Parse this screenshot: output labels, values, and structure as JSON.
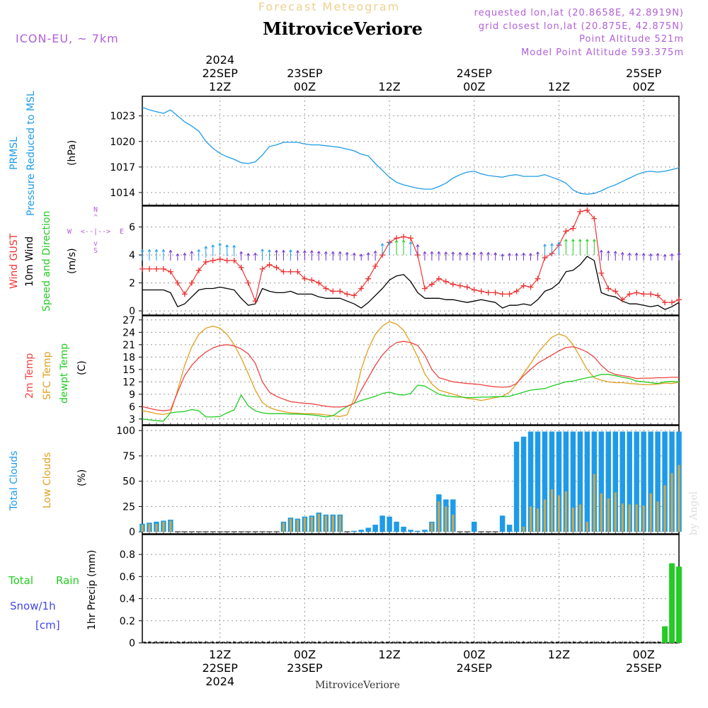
{
  "header": {
    "product_title": "Forecast Meteogram",
    "location": "MitroviceVeriore",
    "model": "ICON-EU, ~ 7km",
    "requested": "requested lon,lat (20.8658E, 42.8919N)",
    "closest": "grid closest lon,lat (20.875E, 42.875N)",
    "point_alt": "Point Altitude 521m",
    "model_alt": "Model Point Altitude 593.375m",
    "footer_location": "MitroviceVeriore",
    "credit": "by Angel"
  },
  "time_axis": {
    "top_labels": [
      {
        "t": 12,
        "lines": [
          "2024",
          "22SEP",
          "12Z"
        ]
      },
      {
        "t": 24,
        "lines": [
          "23SEP",
          "00Z"
        ]
      },
      {
        "t": 36,
        "lines": [
          "12Z"
        ]
      },
      {
        "t": 48,
        "lines": [
          "24SEP",
          "00Z"
        ]
      },
      {
        "t": 60,
        "lines": [
          "12Z"
        ]
      },
      {
        "t": 72,
        "lines": [
          "25SEP",
          "00Z"
        ]
      }
    ],
    "bottom_labels": [
      {
        "t": 12,
        "lines": [
          "12Z",
          "22SEP",
          "2024"
        ]
      },
      {
        "t": 24,
        "lines": [
          "00Z",
          "23SEP"
        ]
      },
      {
        "t": 36,
        "lines": [
          "12Z"
        ]
      },
      {
        "t": 48,
        "lines": [
          "00Z",
          "24SEP"
        ]
      },
      {
        "t": 60,
        "lines": [
          "12Z"
        ]
      },
      {
        "t": 72,
        "lines": [
          "00Z",
          "25SEP"
        ]
      }
    ],
    "t_range": [
      1,
      77
    ]
  },
  "panels": {
    "pressure": {
      "labels": [
        "PRMSL",
        "Pressure Reduced to MSL"
      ],
      "unit": "(hPa)",
      "ticks": [
        "1014",
        "1017",
        "1020",
        "1023"
      ]
    },
    "wind": {
      "labels": [
        "Wind GUST",
        "10m Wind",
        "Speed and Direction"
      ],
      "unit": "(m/s)",
      "ticks": [
        "0",
        "2",
        "4",
        "6"
      ],
      "compass": {
        "n": "N",
        "s": "S",
        "w": "W",
        "e": "E",
        "arrows_h": "<--|-->",
        "v_top": "^",
        "v_bottom": "v"
      }
    },
    "temp": {
      "labels": [
        "2m Temp",
        "SFC Temp",
        "dewpt Temp"
      ],
      "unit": "(C)",
      "ticks": [
        "3",
        "6",
        "9",
        "12",
        "15",
        "18",
        "21",
        "24",
        "27"
      ]
    },
    "clouds": {
      "labels": [
        "Total Clouds",
        "Low Clouds"
      ],
      "unit": "(%)",
      "ticks": [
        "0",
        "25",
        "50",
        "75",
        "100"
      ]
    },
    "precip": {
      "labels": [
        "Total",
        "Rain",
        "Snow/1h",
        "[cm]"
      ],
      "ylabel": "1hr Precip (mm)",
      "ticks": [
        "0",
        "0.2",
        "0.4",
        "0.6",
        "0.8"
      ]
    }
  },
  "colors": {
    "pressure": "#1e9be8",
    "gust": "#ee3333",
    "wind": "#000000",
    "temp2m": "#ee4444",
    "sfc": "#e0a020",
    "dewpt": "#22cc22",
    "total_clouds": "#1e9be8",
    "low_clouds": "#c8a850",
    "rain": "#22cc22",
    "header_orange": "#f0d090",
    "header_purple": "#b060d8"
  },
  "chart_data": [
    {
      "type": "line",
      "title": "PRMSL Pressure Reduced to MSL",
      "ylabel": "(hPa)",
      "ylim": [
        1012.5,
        1025.3
      ],
      "x": [
        1,
        2,
        3,
        4,
        5,
        6,
        7,
        8,
        9,
        10,
        11,
        12,
        13,
        14,
        15,
        16,
        17,
        18,
        19,
        20,
        21,
        22,
        23,
        24,
        25,
        26,
        27,
        28,
        29,
        30,
        31,
        32,
        33,
        34,
        35,
        36,
        37,
        38,
        39,
        40,
        41,
        42,
        43,
        44,
        45,
        46,
        47,
        48,
        49,
        50,
        51,
        52,
        53,
        54,
        55,
        56,
        57,
        58,
        59,
        60,
        61,
        62,
        63,
        64,
        65,
        66,
        67,
        68,
        69,
        70,
        71,
        72,
        73,
        74,
        75,
        76,
        77
      ],
      "series": [
        {
          "name": "PRMSL",
          "values": [
            1024.0,
            1023.7,
            1023.5,
            1023.3,
            1023.7,
            1023.0,
            1022.3,
            1021.8,
            1021.2,
            1020.0,
            1019.2,
            1018.6,
            1018.2,
            1017.9,
            1017.5,
            1017.4,
            1017.6,
            1018.4,
            1019.4,
            1019.6,
            1019.9,
            1019.9,
            1019.9,
            1019.7,
            1019.6,
            1019.6,
            1019.5,
            1019.4,
            1019.3,
            1019.1,
            1018.9,
            1018.5,
            1018.3,
            1017.4,
            1016.6,
            1015.8,
            1015.2,
            1014.9,
            1014.7,
            1014.5,
            1014.4,
            1014.4,
            1014.7,
            1015.1,
            1015.7,
            1016.1,
            1016.4,
            1016.5,
            1016.2,
            1016.0,
            1015.9,
            1015.8,
            1016.0,
            1016.1,
            1015.9,
            1015.9,
            1015.9,
            1016.1,
            1015.8,
            1015.5,
            1015.1,
            1014.3,
            1013.9,
            1013.8,
            1013.9,
            1014.2,
            1014.6,
            1014.9,
            1015.3,
            1015.7,
            1016.1,
            1016.4,
            1016.5,
            1016.4,
            1016.5,
            1016.7,
            1016.9
          ]
        }
      ]
    },
    {
      "type": "line",
      "title": "Wind GUST / 10m Wind Speed and Direction",
      "ylabel": "(m/s)",
      "ylim": [
        -0.3,
        7.5
      ],
      "x": [
        1,
        2,
        3,
        4,
        5,
        6,
        7,
        8,
        9,
        10,
        11,
        12,
        13,
        14,
        15,
        16,
        17,
        18,
        19,
        20,
        21,
        22,
        23,
        24,
        25,
        26,
        27,
        28,
        29,
        30,
        31,
        32,
        33,
        34,
        35,
        36,
        37,
        38,
        39,
        40,
        41,
        42,
        43,
        44,
        45,
        46,
        47,
        48,
        49,
        50,
        51,
        52,
        53,
        54,
        55,
        56,
        57,
        58,
        59,
        60,
        61,
        62,
        63,
        64,
        65,
        66,
        67,
        68,
        69,
        70,
        71,
        72,
        73,
        74,
        75,
        76,
        77
      ],
      "series": [
        {
          "name": "Wind GUST",
          "values": [
            3.0,
            3.0,
            3.0,
            3.0,
            2.8,
            2.0,
            1.2,
            2.0,
            2.9,
            3.5,
            3.6,
            3.7,
            3.6,
            3.6,
            3.1,
            2.0,
            0.7,
            3.0,
            3.3,
            3.1,
            2.8,
            2.8,
            2.8,
            2.3,
            2.2,
            2.0,
            1.6,
            1.4,
            1.4,
            1.2,
            1.1,
            1.6,
            2.3,
            3.2,
            4.0,
            4.9,
            5.2,
            5.3,
            5.2,
            4.0,
            1.6,
            1.9,
            2.3,
            2.1,
            1.9,
            1.8,
            1.7,
            1.5,
            1.4,
            1.3,
            1.3,
            1.2,
            1.2,
            1.4,
            1.8,
            1.7,
            2.3,
            3.8,
            4.1,
            4.7,
            5.7,
            5.9,
            7.1,
            7.2,
            6.6,
            2.7,
            1.6,
            1.4,
            0.8,
            1.2,
            1.3,
            1.2,
            1.2,
            1.1,
            0.6,
            0.6,
            0.8
          ]
        },
        {
          "name": "10m Wind",
          "values": [
            1.5,
            1.5,
            1.5,
            1.5,
            1.3,
            0.3,
            0.5,
            1.0,
            1.5,
            1.6,
            1.6,
            1.7,
            1.6,
            1.5,
            0.9,
            0.4,
            0.5,
            1.6,
            1.4,
            1.3,
            1.3,
            1.4,
            1.2,
            1.2,
            1.2,
            1.0,
            0.9,
            0.9,
            0.9,
            0.7,
            0.5,
            0.2,
            0.6,
            1.1,
            1.6,
            2.2,
            2.5,
            2.6,
            2.1,
            1.3,
            0.9,
            0.9,
            0.9,
            0.8,
            0.8,
            0.7,
            0.6,
            0.7,
            0.8,
            0.7,
            0.6,
            0.2,
            0.4,
            0.4,
            0.5,
            0.4,
            0.8,
            1.4,
            1.6,
            2.0,
            2.8,
            2.9,
            3.3,
            3.9,
            3.6,
            1.3,
            1.1,
            1.0,
            0.7,
            0.5,
            0.5,
            0.4,
            0.3,
            0.4,
            0.1,
            0.3,
            0.6
          ]
        }
      ]
    },
    {
      "type": "line",
      "title": "2m Temp / SFC Temp / dewpt Temp",
      "ylabel": "(C)",
      "ylim": [
        1.6,
        28.0
      ],
      "x": [
        1,
        2,
        3,
        4,
        5,
        6,
        7,
        8,
        9,
        10,
        11,
        12,
        13,
        14,
        15,
        16,
        17,
        18,
        19,
        20,
        21,
        22,
        23,
        24,
        25,
        26,
        27,
        28,
        29,
        30,
        31,
        32,
        33,
        34,
        35,
        36,
        37,
        38,
        39,
        40,
        41,
        42,
        43,
        44,
        45,
        46,
        47,
        48,
        49,
        50,
        51,
        52,
        53,
        54,
        55,
        56,
        57,
        58,
        59,
        60,
        61,
        62,
        63,
        64,
        65,
        66,
        67,
        68,
        69,
        70,
        71,
        72,
        73,
        74,
        75,
        76,
        77
      ],
      "series": [
        {
          "name": "2m Temp",
          "values": [
            6.0,
            5.6,
            5.2,
            5.0,
            5.2,
            9.5,
            13.5,
            16.0,
            17.8,
            19.2,
            20.2,
            20.8,
            21.0,
            20.7,
            20.0,
            18.8,
            16.5,
            12.0,
            9.5,
            8.5,
            7.8,
            7.2,
            7.0,
            6.8,
            6.7,
            6.4,
            6.1,
            5.9,
            5.9,
            6.1,
            6.8,
            10.0,
            13.0,
            16.0,
            18.5,
            20.3,
            21.5,
            21.8,
            21.5,
            20.8,
            18.5,
            15.0,
            13.0,
            12.5,
            12.0,
            11.8,
            11.6,
            11.5,
            11.3,
            11.0,
            10.8,
            10.7,
            10.8,
            11.6,
            13.5,
            15.0,
            16.5,
            17.5,
            18.5,
            19.5,
            20.3,
            20.5,
            20.0,
            19.2,
            18.0,
            16.0,
            14.5,
            13.8,
            13.5,
            13.2,
            12.8,
            12.9,
            12.9,
            13.0,
            13.0,
            13.1,
            13.1
          ]
        },
        {
          "name": "SFC Temp",
          "values": [
            5.0,
            4.7,
            4.3,
            4.1,
            4.5,
            10.0,
            16.0,
            20.5,
            23.5,
            25.0,
            25.5,
            25.0,
            23.5,
            21.0,
            17.8,
            14.0,
            10.0,
            7.0,
            5.8,
            5.2,
            4.8,
            4.5,
            4.4,
            4.3,
            4.3,
            4.2,
            4.0,
            3.8,
            3.6,
            4.0,
            8.0,
            15.0,
            20.0,
            23.5,
            25.5,
            26.6,
            26.0,
            24.5,
            21.5,
            18.0,
            14.0,
            11.5,
            10.0,
            9.5,
            9.0,
            8.5,
            8.0,
            7.8,
            7.5,
            7.8,
            8.2,
            8.5,
            9.5,
            11.5,
            14.0,
            16.5,
            19.0,
            21.0,
            22.8,
            23.6,
            23.0,
            21.0,
            18.0,
            15.0,
            13.0,
            12.4,
            12.0,
            11.8,
            11.8,
            11.6,
            11.5,
            11.3,
            11.3,
            11.5,
            11.7,
            11.6,
            11.9
          ]
        },
        {
          "name": "dewpt Temp",
          "values": [
            3.0,
            2.8,
            2.6,
            2.5,
            4.5,
            4.7,
            4.8,
            5.3,
            5.0,
            3.5,
            3.5,
            3.6,
            4.5,
            5.2,
            8.8,
            6.2,
            5.0,
            4.5,
            4.3,
            4.3,
            4.3,
            4.2,
            4.2,
            4.1,
            4.0,
            3.8,
            3.5,
            3.8,
            5.0,
            6.0,
            6.8,
            7.5,
            8.0,
            8.5,
            9.2,
            9.5,
            9.0,
            8.8,
            9.2,
            11.2,
            11.0,
            10.0,
            9.0,
            8.6,
            8.4,
            8.3,
            8.2,
            8.2,
            8.3,
            8.3,
            8.4,
            8.4,
            8.5,
            9.0,
            9.5,
            10.0,
            10.2,
            10.4,
            11.0,
            11.5,
            12.0,
            12.2,
            12.6,
            13.0,
            13.3,
            13.8,
            13.8,
            13.5,
            13.1,
            12.8,
            12.2,
            12.0,
            11.8,
            11.6,
            12.0,
            12.1,
            12.0
          ]
        }
      ]
    },
    {
      "type": "bar",
      "title": "Total Clouds / Low Clouds",
      "ylabel": "(%)",
      "ylim": [
        -2,
        105
      ],
      "x": [
        1,
        2,
        3,
        4,
        5,
        6,
        7,
        8,
        9,
        10,
        11,
        12,
        13,
        14,
        15,
        16,
        17,
        18,
        19,
        20,
        21,
        22,
        23,
        24,
        25,
        26,
        27,
        28,
        29,
        30,
        31,
        32,
        33,
        34,
        35,
        36,
        37,
        38,
        39,
        40,
        41,
        42,
        43,
        44,
        45,
        46,
        47,
        48,
        49,
        50,
        51,
        52,
        53,
        54,
        55,
        56,
        57,
        58,
        59,
        60,
        61,
        62,
        63,
        64,
        65,
        66,
        67,
        68,
        69,
        70,
        71,
        72,
        73,
        74,
        75,
        76,
        77
      ],
      "series": [
        {
          "name": "Total Clouds",
          "values": [
            8,
            9,
            10,
            11,
            12,
            0,
            0,
            0,
            0,
            0,
            0,
            0,
            0,
            0,
            0,
            0,
            0,
            0,
            0,
            0,
            10,
            14,
            13,
            15,
            16,
            19,
            17,
            17,
            17,
            0,
            1,
            2,
            4,
            7,
            16,
            15,
            10,
            5,
            2,
            1,
            2,
            10,
            37,
            32,
            32,
            0,
            0,
            10,
            0,
            0,
            0,
            16,
            7,
            89,
            94,
            99,
            99,
            99,
            99,
            99,
            99,
            99,
            99,
            99,
            99,
            99,
            99,
            99,
            99,
            99,
            99,
            99,
            99,
            99,
            99,
            99,
            99
          ]
        },
        {
          "name": "Low Clouds",
          "values": [
            7,
            8,
            8,
            10,
            11,
            0,
            0,
            0,
            0,
            0,
            0,
            0,
            0,
            0,
            0,
            0,
            0,
            0,
            0,
            0,
            9,
            13,
            12,
            14,
            15,
            18,
            16,
            16,
            16,
            0,
            0,
            0,
            0,
            0,
            0,
            0,
            0,
            0,
            0,
            0,
            0,
            9,
            30,
            25,
            17,
            0,
            0,
            0,
            0,
            0,
            0,
            0,
            0,
            0,
            5,
            25,
            23,
            32,
            42,
            36,
            40,
            24,
            27,
            10,
            57,
            38,
            33,
            39,
            28,
            27,
            27,
            26,
            38,
            30,
            46,
            58,
            66
          ]
        }
      ]
    },
    {
      "type": "bar",
      "title": "Total Rain Snow/1h [cm]",
      "ylabel": "1hr Precip (mm)",
      "ylim": [
        0,
        0.98
      ],
      "x": [
        75,
        76,
        77
      ],
      "series": [
        {
          "name": "Total Rain",
          "values": [
            0.15,
            0.72,
            0.69
          ]
        }
      ]
    }
  ]
}
